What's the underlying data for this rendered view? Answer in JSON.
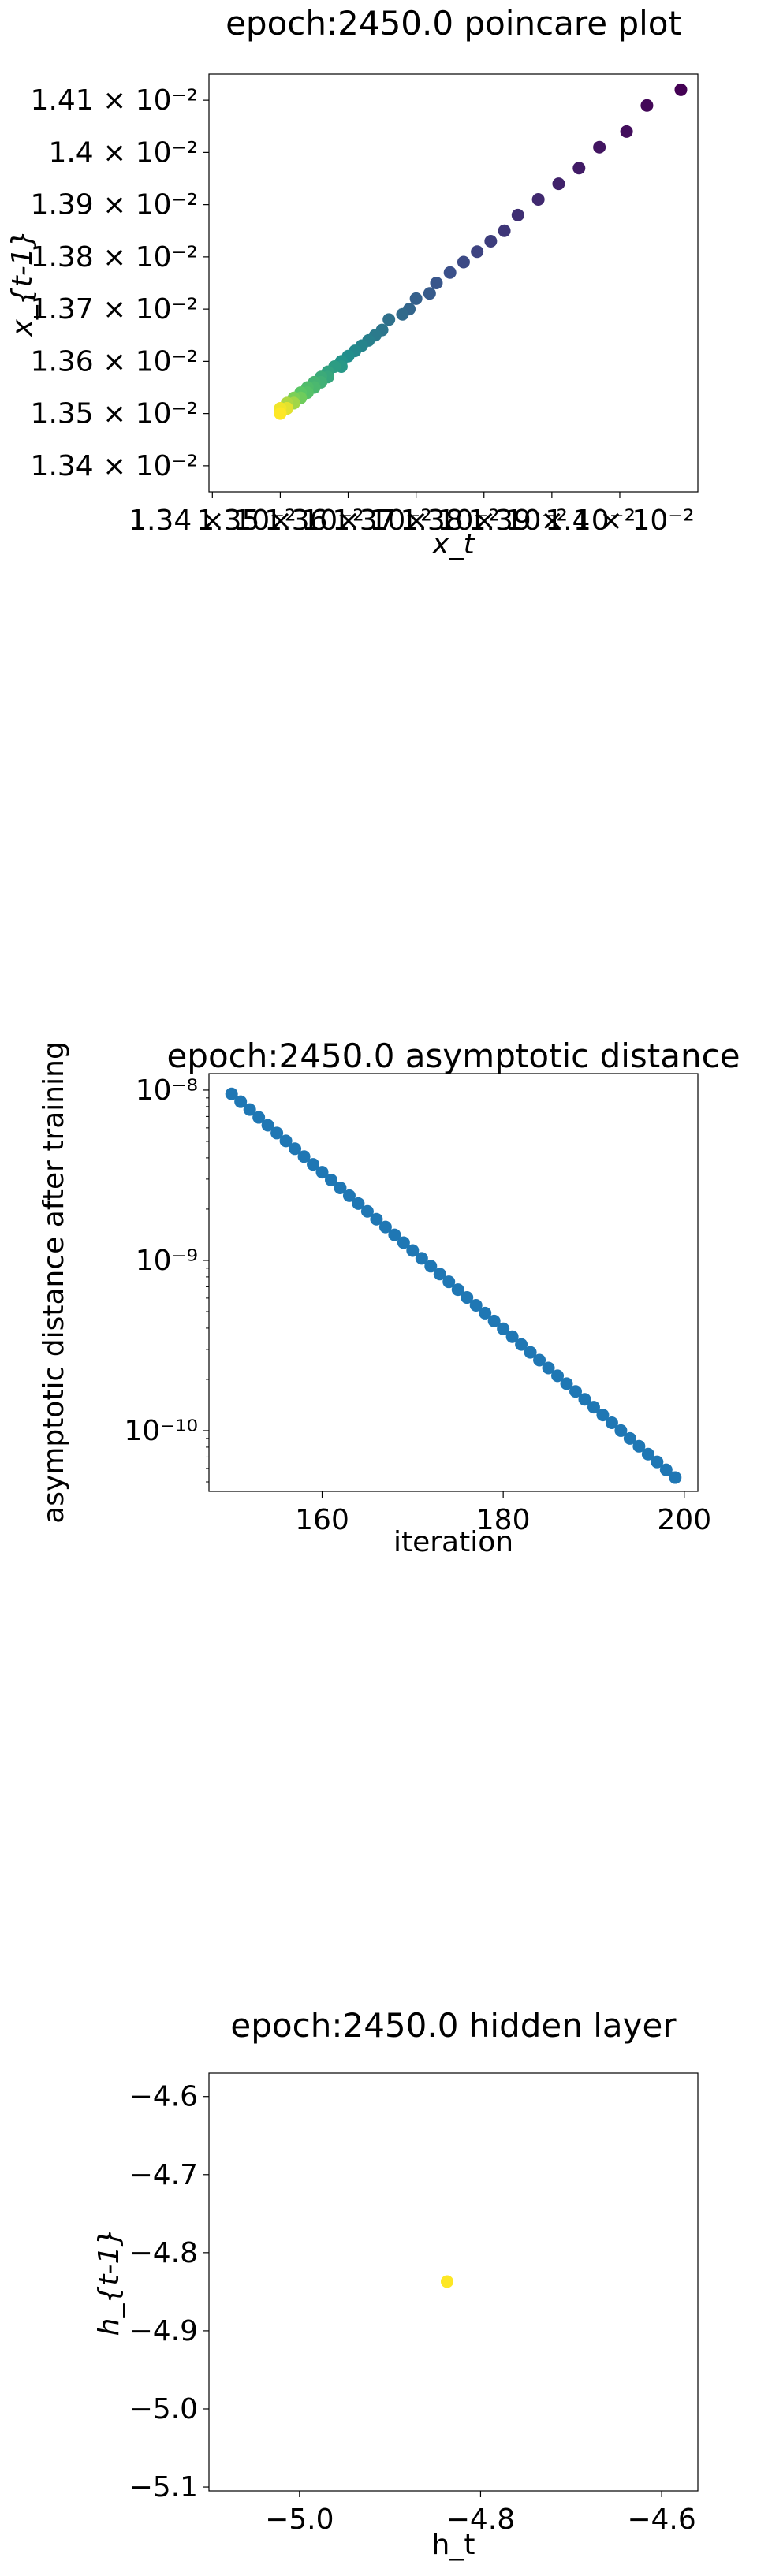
{
  "chart_data": [
    {
      "type": "scatter",
      "title": "epoch:2450.0 poincare plot",
      "xlabel": "x_t",
      "ylabel": "x_{t-1}",
      "colormap": "viridis",
      "xlim": [
        0.013395,
        0.014115
      ],
      "ylim": [
        0.01335,
        0.01415
      ],
      "xticks": [
        0.0134,
        0.0135,
        0.0136,
        0.0137,
        0.0138,
        0.0139,
        0.014
      ],
      "xtick_labels": [
        "1.34 × 10⁻²",
        "1.35 × 10⁻²",
        "1.36 × 10⁻²",
        "1.37 × 10⁻²",
        "1.38 × 10⁻²",
        "1.39 × 10⁻²",
        "1.4 × 10⁻²"
      ],
      "yticks": [
        0.0134,
        0.0135,
        0.0136,
        0.0137,
        0.0138,
        0.0139,
        0.014,
        0.0141
      ],
      "ytick_labels": [
        "1.34 × 10⁻²",
        "1.35 × 10⁻²",
        "1.36 × 10⁻²",
        "1.37 × 10⁻²",
        "1.38 × 10⁻²",
        "1.39 × 10⁻²",
        "1.4 × 10⁻²",
        "1.41 × 10⁻²"
      ],
      "points": [
        [
          0.01409,
          0.01412
        ],
        [
          0.01404,
          0.01409
        ],
        [
          0.01401,
          0.01404
        ],
        [
          0.01397,
          0.01401
        ],
        [
          0.01394,
          0.01397
        ],
        [
          0.01391,
          0.01394
        ],
        [
          0.01388,
          0.01391
        ],
        [
          0.01385,
          0.01388
        ],
        [
          0.01383,
          0.01385
        ],
        [
          0.01381,
          0.01383
        ],
        [
          0.01379,
          0.01381
        ],
        [
          0.01377,
          0.01379
        ],
        [
          0.01375,
          0.01377
        ],
        [
          0.01373,
          0.01375
        ],
        [
          0.01372,
          0.01373
        ],
        [
          0.0137,
          0.01372
        ],
        [
          0.01369,
          0.0137
        ],
        [
          0.01368,
          0.01369
        ],
        [
          0.01366,
          0.01368
        ],
        [
          0.01365,
          0.01366
        ],
        [
          0.01364,
          0.01365
        ],
        [
          0.01363,
          0.01364
        ],
        [
          0.01362,
          0.01363
        ],
        [
          0.01361,
          0.01362
        ],
        [
          0.0136,
          0.01361
        ],
        [
          0.01359,
          0.0136
        ],
        [
          0.01359,
          0.01359
        ],
        [
          0.01358,
          0.01359
        ],
        [
          0.01357,
          0.01358
        ],
        [
          0.01357,
          0.01357
        ],
        [
          0.01356,
          0.01357
        ],
        [
          0.01356,
          0.01356
        ],
        [
          0.01355,
          0.01356
        ],
        [
          0.01355,
          0.01355
        ],
        [
          0.01354,
          0.01355
        ],
        [
          0.01354,
          0.01354
        ],
        [
          0.01353,
          0.01354
        ],
        [
          0.01353,
          0.01353
        ],
        [
          0.01353,
          0.01353
        ],
        [
          0.01352,
          0.01353
        ],
        [
          0.01352,
          0.01352
        ],
        [
          0.01352,
          0.01352
        ],
        [
          0.01352,
          0.01352
        ],
        [
          0.01351,
          0.01352
        ],
        [
          0.01351,
          0.01351
        ],
        [
          0.01351,
          0.01351
        ],
        [
          0.01351,
          0.01351
        ],
        [
          0.01351,
          0.01351
        ],
        [
          0.0135,
          0.01351
        ],
        [
          0.0135,
          0.0135
        ]
      ]
    },
    {
      "type": "scatter",
      "title": "epoch:2450.0 asymptotic distance",
      "xlabel": "iteration",
      "ylabel": "asymptotic distance after training",
      "yscale": "log",
      "color": "#1f77b4",
      "xlim": [
        147.5,
        201.5
      ],
      "ylim": [
        4.4e-11,
        1.25e-08
      ],
      "xticks": [
        160,
        180,
        200
      ],
      "yticks": [
        1e-10,
        1e-09,
        1e-08
      ],
      "ytick_labels": [
        "10⁻¹⁰",
        "10⁻⁹",
        "10⁻⁸"
      ],
      "x_start": 150,
      "x_end": 199,
      "y_start": 9.5e-09,
      "y_end": 5.3e-11
    },
    {
      "type": "scatter",
      "title": "epoch:2450.0 hidden layer",
      "xlabel": "h_t",
      "ylabel": "h_{t-1}",
      "xlim": [
        -5.1,
        -4.56
      ],
      "ylim": [
        -5.105,
        -4.57
      ],
      "xticks": [
        -5.0,
        -4.8,
        -4.6
      ],
      "xtick_labels": [
        "−5.0",
        "−4.8",
        "−4.6"
      ],
      "yticks": [
        -4.6,
        -4.7,
        -4.8,
        -4.9,
        -5.0,
        -5.1
      ],
      "ytick_labels": [
        "−4.6",
        "−4.7",
        "−4.8",
        "−4.9",
        "−5.0",
        "−5.1"
      ],
      "color": "#fde725",
      "points": [
        [
          -4.837,
          -4.837
        ]
      ]
    }
  ]
}
